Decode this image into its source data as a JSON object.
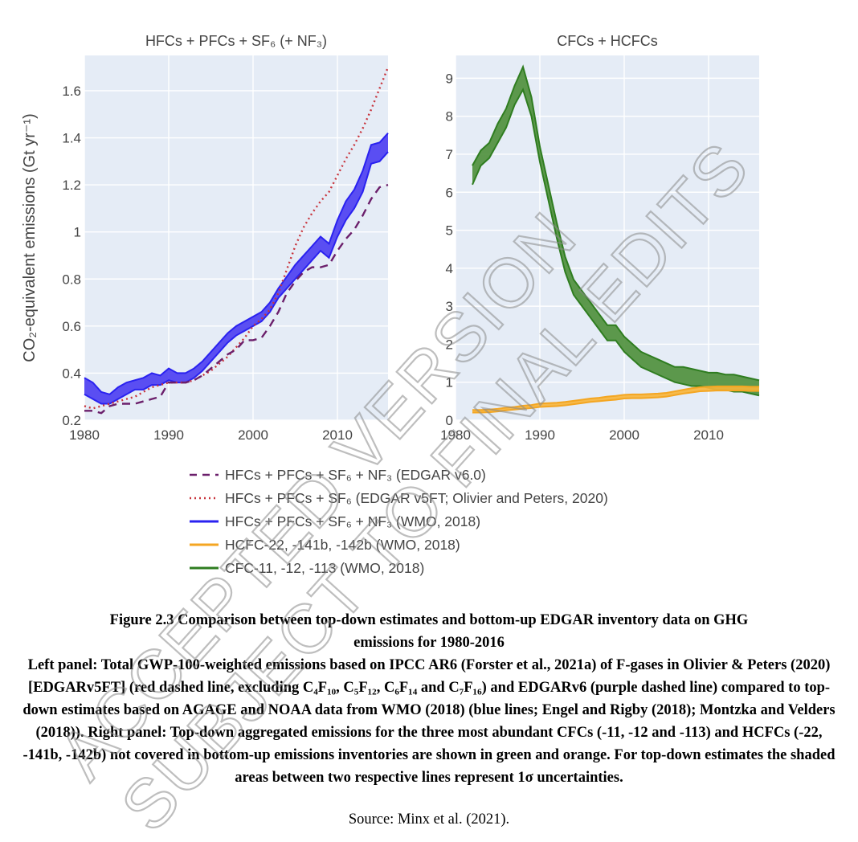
{
  "legend": [
    {
      "label": "HFCs + PFCs + SF₆ + NF₃ (EDGAR v6.0)",
      "color": "#6b1f6b",
      "style": "dashed"
    },
    {
      "label": "HFCs + PFCs + SF₆ (EDGAR v5FT; Olivier and Peters, 2020)",
      "color": "#c8343c",
      "style": "dotted"
    },
    {
      "label": "HFCs + PFCs + SF₆ + NF₃ (WMO, 2018)",
      "color": "#2a22f0",
      "style": "solid"
    },
    {
      "label": "HCFC-22, -141b, -142b (WMO, 2018)",
      "color": "#f4a622",
      "style": "solid"
    },
    {
      "label": "CFC-11, -12, -113 (WMO, 2018)",
      "color": "#2f7d20",
      "style": "solid"
    }
  ],
  "caption": {
    "title_line1": "Figure 2.3 Comparison between top-down estimates and bottom-up EDGAR inventory data on GHG",
    "title_line2": "emissions for 1980-2016",
    "body": "Left panel: Total GWP-100-weighted emissions based on IPCC AR6 (Forster et al., 2021a) of F-gases in Olivier & Peters (2020) [EDGARv5FT] (red dashed line, excluding C₄F₁₀, C₅F₁₂, C₆F₁₄ and C₇F₁₆) and EDGARv6 (purple dashed line) compared to top-down estimates based on AGAGE and NOAA data from WMO (2018) (blue lines; Engel and Rigby (2018); Montzka and Velders (2018)). Right panel: Top-down aggregated emissions for the three most abundant CFCs (-11, -12 and -113) and HCFCs (-22, -141b, -142b) not covered in bottom-up emissions inventories are shown in green and orange. For top-down estimates the shaded areas between two respective lines represent 1σ uncertainties.",
    "source": "Source: Minx et al. (2021)."
  },
  "watermark": {
    "line1": "ACCEPTED VERSION",
    "line2": "SUBJECT TO FINAL EDITS"
  },
  "colors": {
    "plot_bg": "#e5ecf6",
    "grid": "#ffffff",
    "blue_fill": "#4a3df2",
    "green_fill": "#4c8f3a",
    "orange_fill": "#f7b53a"
  },
  "chart_data": [
    {
      "type": "line",
      "title": "HFCs + PFCs + SF₆ (+ NF₃)",
      "xlabel": "",
      "ylabel": "CO₂-equivalent emissions (Gt yr⁻¹)",
      "xlim": [
        1980,
        2016
      ],
      "ylim": [
        0.2,
        1.75
      ],
      "xticks": [
        1980,
        1990,
        2000,
        2010
      ],
      "yticks": [
        0.2,
        0.4,
        0.6,
        0.8,
        1,
        1.2,
        1.4,
        1.6
      ],
      "ytick_labels": [
        "0.2",
        "0.4",
        "0.6",
        "0.8",
        "1",
        "1.2",
        "1.4",
        "1.6"
      ],
      "grid": true,
      "x": [
        1980,
        1981,
        1982,
        1983,
        1984,
        1985,
        1986,
        1987,
        1988,
        1989,
        1990,
        1991,
        1992,
        1993,
        1994,
        1995,
        1996,
        1997,
        1998,
        1999,
        2000,
        2001,
        2002,
        2003,
        2004,
        2005,
        2006,
        2007,
        2008,
        2009,
        2010,
        2011,
        2012,
        2013,
        2014,
        2015,
        2016
      ],
      "series": [
        {
          "name": "HFCs + PFCs + SF₆ + NF₃ (WMO, 2018)",
          "kind": "band",
          "upper": [
            0.38,
            0.36,
            0.32,
            0.31,
            0.34,
            0.36,
            0.37,
            0.38,
            0.4,
            0.39,
            0.42,
            0.4,
            0.4,
            0.42,
            0.45,
            0.49,
            0.53,
            0.57,
            0.6,
            0.62,
            0.64,
            0.66,
            0.7,
            0.76,
            0.81,
            0.86,
            0.9,
            0.94,
            0.98,
            0.95,
            1.05,
            1.13,
            1.18,
            1.26,
            1.37,
            1.38,
            1.42
          ],
          "lower": [
            0.31,
            0.29,
            0.27,
            0.27,
            0.29,
            0.31,
            0.33,
            0.33,
            0.35,
            0.35,
            0.37,
            0.36,
            0.36,
            0.38,
            0.41,
            0.45,
            0.49,
            0.53,
            0.56,
            0.58,
            0.6,
            0.62,
            0.66,
            0.72,
            0.76,
            0.8,
            0.84,
            0.88,
            0.92,
            0.89,
            0.98,
            1.05,
            1.1,
            1.17,
            1.29,
            1.3,
            1.34
          ]
        },
        {
          "name": "HFCs + PFCs + SF₆ (EDGAR v5FT; Olivier and Peters, 2020)",
          "kind": "dotted",
          "values": [
            0.26,
            0.25,
            0.26,
            0.27,
            0.28,
            0.29,
            0.3,
            0.32,
            0.34,
            0.35,
            0.36,
            0.36,
            0.36,
            0.37,
            0.39,
            0.41,
            0.44,
            0.47,
            0.51,
            0.55,
            0.6,
            0.63,
            0.67,
            0.74,
            0.84,
            0.94,
            1.02,
            1.08,
            1.13,
            1.17,
            1.24,
            1.31,
            1.37,
            1.44,
            1.52,
            1.61,
            1.7
          ]
        },
        {
          "name": "HFCs + PFCs + SF₆ + NF₃ (EDGAR v6.0)",
          "kind": "dashed",
          "values": [
            0.24,
            0.24,
            0.23,
            0.26,
            0.27,
            0.27,
            0.27,
            0.28,
            0.29,
            0.3,
            0.36,
            0.36,
            0.36,
            0.37,
            0.39,
            0.42,
            0.45,
            0.48,
            0.5,
            0.54,
            0.54,
            0.55,
            0.6,
            0.66,
            0.74,
            0.79,
            0.83,
            0.85,
            0.85,
            0.86,
            0.92,
            0.97,
            1.01,
            1.07,
            1.14,
            1.19,
            1.2
          ]
        }
      ]
    },
    {
      "type": "area",
      "title": "CFCs + HCFCs",
      "xlabel": "",
      "ylabel": "",
      "xlim": [
        1980,
        2016
      ],
      "ylim": [
        0,
        9.6
      ],
      "xticks": [
        1980,
        1990,
        2000,
        2010
      ],
      "yticks": [
        0,
        1,
        2,
        3,
        4,
        5,
        6,
        7,
        8,
        9
      ],
      "grid": true,
      "x": [
        1982,
        1983,
        1984,
        1985,
        1986,
        1987,
        1988,
        1989,
        1990,
        1991,
        1992,
        1993,
        1994,
        1995,
        1996,
        1997,
        1998,
        1999,
        2000,
        2001,
        2002,
        2003,
        2004,
        2005,
        2006,
        2007,
        2008,
        2009,
        2010,
        2011,
        2012,
        2013,
        2014,
        2015,
        2016
      ],
      "series": [
        {
          "name": "CFC-11, -12, -113 (WMO, 2018)",
          "kind": "band",
          "upper": [
            6.7,
            7.1,
            7.3,
            7.8,
            8.2,
            8.8,
            9.3,
            8.5,
            7.2,
            6.2,
            5.2,
            4.3,
            3.7,
            3.4,
            3.1,
            2.8,
            2.5,
            2.5,
            2.2,
            2.0,
            1.8,
            1.7,
            1.6,
            1.5,
            1.4,
            1.4,
            1.35,
            1.3,
            1.25,
            1.25,
            1.2,
            1.2,
            1.15,
            1.1,
            1.05
          ],
          "lower": [
            6.2,
            6.7,
            6.9,
            7.3,
            7.7,
            8.3,
            8.7,
            8.0,
            6.8,
            5.8,
            4.8,
            3.9,
            3.3,
            3.0,
            2.7,
            2.4,
            2.1,
            2.1,
            1.8,
            1.6,
            1.4,
            1.3,
            1.2,
            1.1,
            1.0,
            0.95,
            0.9,
            0.9,
            0.85,
            0.8,
            0.8,
            0.75,
            0.75,
            0.7,
            0.65
          ]
        },
        {
          "name": "HCFC-22, -141b, -142b (WMO, 2018)",
          "kind": "band",
          "upper": [
            0.27,
            0.27,
            0.28,
            0.3,
            0.33,
            0.35,
            0.38,
            0.4,
            0.44,
            0.45,
            0.46,
            0.48,
            0.51,
            0.54,
            0.57,
            0.59,
            0.62,
            0.64,
            0.67,
            0.68,
            0.68,
            0.69,
            0.7,
            0.72,
            0.76,
            0.8,
            0.84,
            0.87,
            0.88,
            0.89,
            0.89,
            0.89,
            0.89,
            0.88,
            0.88
          ],
          "lower": [
            0.2,
            0.2,
            0.21,
            0.23,
            0.26,
            0.28,
            0.3,
            0.32,
            0.35,
            0.36,
            0.37,
            0.39,
            0.42,
            0.45,
            0.48,
            0.5,
            0.52,
            0.54,
            0.57,
            0.58,
            0.58,
            0.59,
            0.6,
            0.62,
            0.66,
            0.7,
            0.73,
            0.76,
            0.77,
            0.78,
            0.78,
            0.78,
            0.78,
            0.77,
            0.77
          ]
        }
      ]
    }
  ]
}
